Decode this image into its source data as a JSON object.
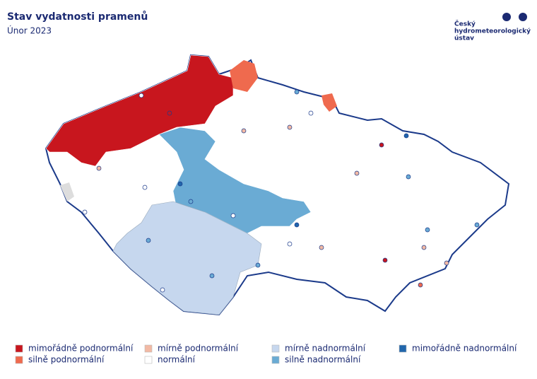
{
  "header": {
    "title": "Stav vydatnosti pramenů",
    "subtitle": "Únor 2023"
  },
  "logo": {
    "lines": [
      "Český",
      "hydrometeorologický",
      "ústav"
    ]
  },
  "legend": {
    "items": [
      {
        "label": "mimořádně podnormální",
        "color": "#c8161e"
      },
      {
        "label": "silně podnormální",
        "color": "#ef6a4e"
      },
      {
        "label": "mírně podnormální",
        "color": "#f2b9a4"
      },
      {
        "label": "normální",
        "color": "#ffffff"
      },
      {
        "label": "mírně nadnormální",
        "color": "#c6d7ee"
      },
      {
        "label": "silně nadnormální",
        "color": "#6aabd4"
      },
      {
        "label": "mimořádně nadnormální",
        "color": "#2166ac"
      }
    ]
  }
}
